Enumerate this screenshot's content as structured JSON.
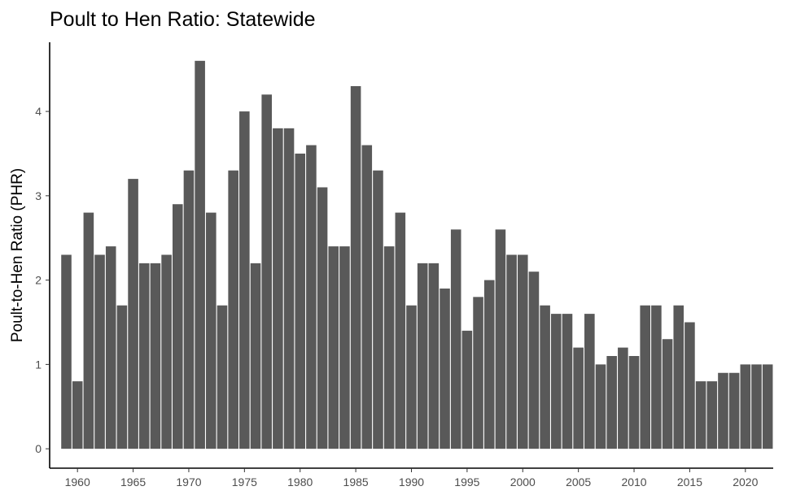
{
  "chart_data": {
    "type": "bar",
    "title": "Poult to Hen Ratio: Statewide",
    "xlabel": "",
    "ylabel": "Poult-to-Hen Ratio (PHR)",
    "grid": false,
    "bar_color": "#595959",
    "x": [
      1959,
      1960,
      1961,
      1962,
      1963,
      1964,
      1965,
      1966,
      1967,
      1968,
      1969,
      1970,
      1971,
      1972,
      1973,
      1974,
      1975,
      1976,
      1977,
      1978,
      1979,
      1980,
      1981,
      1982,
      1983,
      1984,
      1985,
      1986,
      1987,
      1988,
      1989,
      1990,
      1991,
      1992,
      1993,
      1994,
      1995,
      1996,
      1997,
      1998,
      1999,
      2000,
      2001,
      2002,
      2003,
      2004,
      2005,
      2006,
      2007,
      2008,
      2009,
      2010,
      2011,
      2012,
      2013,
      2014,
      2015,
      2016,
      2017,
      2018,
      2019,
      2020,
      2021,
      2022
    ],
    "values": [
      2.3,
      0.8,
      2.8,
      2.3,
      2.4,
      1.7,
      3.2,
      2.2,
      2.2,
      2.3,
      2.9,
      3.3,
      4.6,
      2.8,
      1.7,
      3.3,
      4.0,
      2.2,
      4.2,
      3.8,
      3.8,
      3.5,
      3.6,
      3.1,
      2.4,
      2.4,
      4.3,
      3.6,
      3.3,
      2.4,
      2.8,
      1.7,
      2.2,
      2.2,
      1.9,
      2.6,
      1.4,
      1.8,
      2.0,
      2.6,
      2.3,
      2.3,
      2.1,
      1.7,
      1.6,
      1.6,
      1.2,
      1.6,
      1.0,
      1.1,
      1.2,
      1.1,
      1.7,
      1.7,
      1.3,
      1.7,
      1.5,
      0.8,
      0.8,
      0.9,
      0.9,
      1.0,
      1.0,
      1.0
    ],
    "xlim": [
      1957.5,
      2022.5
    ],
    "ylim": [
      -0.23,
      4.82
    ],
    "x_ticks": [
      "1960",
      "1965",
      "1970",
      "1975",
      "1980",
      "1985",
      "1990",
      "1995",
      "2000",
      "2005",
      "2010",
      "2015",
      "2020"
    ],
    "y_ticks": [
      "0",
      "1",
      "2",
      "3",
      "4"
    ]
  }
}
